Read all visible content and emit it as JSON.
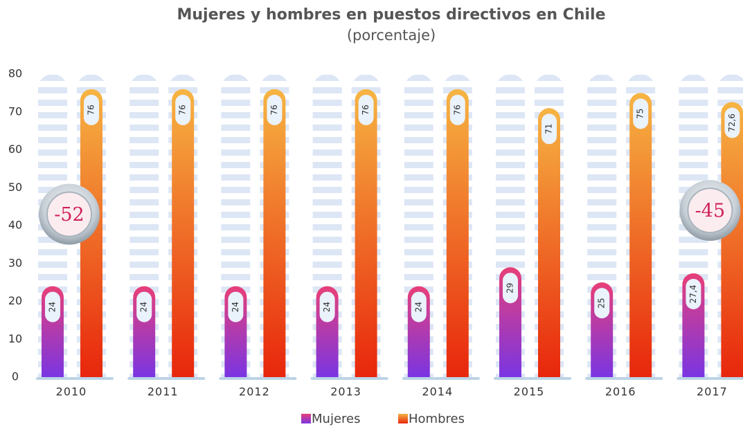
{
  "chart_data": {
    "type": "bar",
    "title": "Mujeres y hombres en puestos directivos en Chile",
    "subtitle": "(porcentaje)",
    "categories": [
      "2010",
      "2011",
      "2012",
      "2013",
      "2014",
      "2015",
      "2016",
      "2017"
    ],
    "series": [
      {
        "name": "Mujeres",
        "color": "#7a35e2",
        "color_top": "#e6407a",
        "values": [
          24,
          24,
          24,
          24,
          24,
          29,
          25,
          27.4
        ],
        "value_labels": [
          "24",
          "24",
          "24",
          "24",
          "24",
          "29",
          "25",
          "27,4"
        ]
      },
      {
        "name": "Hombres",
        "color": "#e8260c",
        "color_top": "#f6b443",
        "values": [
          76,
          76,
          76,
          76,
          76,
          71,
          75,
          72.6
        ],
        "value_labels": [
          "76",
          "76",
          "76",
          "76",
          "76",
          "71",
          "75",
          "72,6"
        ]
      }
    ],
    "ylim": [
      0,
      80
    ],
    "yticks": [
      0,
      10,
      20,
      30,
      40,
      50,
      60,
      70,
      80
    ],
    "annotations": [
      {
        "text": "-52",
        "x": "2010",
        "y": 43
      },
      {
        "text": "-45",
        "x": "2017",
        "y": 44
      }
    ],
    "legend": "bottom"
  }
}
